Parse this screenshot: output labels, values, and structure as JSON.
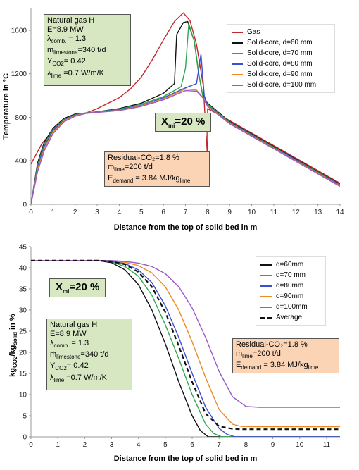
{
  "chart_data": [
    {
      "type": "line",
      "xlabel": "Distance from the top of solid bed in m",
      "ylabel": "Temperature in °C",
      "xlim": [
        0,
        14
      ],
      "ylim": [
        0,
        1800
      ],
      "xticks": [
        "0",
        "1",
        "2",
        "3",
        "4",
        "5",
        "6",
        "7",
        "8",
        "9",
        "10",
        "11",
        "12",
        "13",
        "14"
      ],
      "yticks": [
        "0",
        "400",
        "800",
        "1200",
        "1600"
      ],
      "grid": "none",
      "legend_position": "top-right",
      "series": [
        {
          "name": "Gas",
          "color": "#c0272d",
          "x": [
            0,
            0.5,
            1,
            1.5,
            2,
            2.5,
            3,
            3.5,
            4,
            4.5,
            5,
            5.5,
            6,
            6.5,
            6.9,
            7.2,
            7.5,
            7.8,
            8,
            8,
            9,
            10,
            11,
            12,
            13,
            14
          ],
          "y": [
            370,
            560,
            680,
            760,
            810,
            840,
            880,
            930,
            980,
            1060,
            1170,
            1330,
            1510,
            1680,
            1760,
            1690,
            1470,
            1100,
            420,
            880,
            770,
            655,
            540,
            425,
            310,
            195
          ]
        },
        {
          "name": "Solid-core, d=60 mm",
          "color": "#111111",
          "x": [
            0,
            0.3,
            0.6,
            1,
            1.5,
            2,
            2.5,
            3,
            4,
            5,
            6,
            6.5,
            6.6,
            6.9,
            7.1,
            7.4,
            7.6,
            7.8,
            8,
            9,
            10,
            11,
            12,
            13,
            14
          ],
          "y": [
            0,
            380,
            570,
            700,
            790,
            830,
            840,
            850,
            880,
            930,
            1020,
            1110,
            1560,
            1670,
            1680,
            1500,
            1200,
            980,
            930,
            760,
            645,
            530,
            415,
            300,
            185
          ]
        },
        {
          "name": "Solid-core, d=70 mm",
          "color": "#2ea84f",
          "x": [
            0,
            0.3,
            0.6,
            1,
            1.5,
            2,
            2.5,
            3,
            4,
            5,
            6,
            6.8,
            7,
            7.15,
            7.4,
            7.6,
            7.8,
            8,
            9,
            10,
            11,
            12,
            13,
            14
          ],
          "y": [
            0,
            360,
            550,
            690,
            780,
            825,
            840,
            850,
            875,
            920,
            990,
            1080,
            1250,
            1660,
            1500,
            1200,
            980,
            920,
            755,
            640,
            525,
            410,
            295,
            180
          ]
        },
        {
          "name": "Solid-core, d=80 mm",
          "color": "#3c4fd3",
          "x": [
            0,
            0.3,
            0.6,
            1,
            1.5,
            2,
            2.5,
            3,
            4,
            5,
            6,
            7,
            7.5,
            7.7,
            7.85,
            8,
            9,
            10,
            11,
            12,
            13,
            14
          ],
          "y": [
            0,
            340,
            530,
            680,
            775,
            820,
            840,
            848,
            870,
            910,
            980,
            1070,
            1110,
            1380,
            1000,
            910,
            750,
            635,
            520,
            405,
            290,
            175
          ]
        },
        {
          "name": "Solid-core, d=90 mm",
          "color": "#ed8a26",
          "x": [
            0,
            0.3,
            0.6,
            1,
            1.5,
            2,
            2.5,
            3,
            4,
            5,
            6,
            7,
            7.5,
            7.8,
            8,
            9,
            10,
            11,
            12,
            13,
            14
          ],
          "y": [
            0,
            320,
            510,
            665,
            770,
            815,
            838,
            846,
            865,
            905,
            970,
            1060,
            1050,
            980,
            905,
            745,
            630,
            515,
            400,
            285,
            170
          ]
        },
        {
          "name": "Solid-core, d=100 mm",
          "color": "#9b59c6",
          "x": [
            0,
            0.3,
            0.6,
            1,
            1.5,
            2,
            2.5,
            3,
            4,
            5,
            6,
            7,
            7.5,
            7.8,
            8,
            9,
            10,
            11,
            12,
            13,
            14
          ],
          "y": [
            0,
            300,
            490,
            650,
            760,
            810,
            836,
            845,
            862,
            900,
            960,
            1045,
            1040,
            975,
            900,
            740,
            625,
            510,
            395,
            280,
            165
          ]
        }
      ]
    },
    {
      "type": "line",
      "xlabel": "Distance from the top of solid bed in m",
      "ylabel": "kgCO2/kgsolid in %",
      "xlim": [
        0,
        11.5
      ],
      "ylim": [
        0,
        45
      ],
      "xticks": [
        "0",
        "1",
        "2",
        "3",
        "4",
        "5",
        "6",
        "7",
        "8",
        "9",
        "10",
        "11"
      ],
      "yticks": [
        "0",
        "5",
        "10",
        "15",
        "20",
        "25",
        "30",
        "35",
        "40",
        "45"
      ],
      "grid": "none",
      "legend_position": "top-right",
      "series": [
        {
          "name": "d=60mm",
          "color": "#111111",
          "x": [
            0,
            1,
            2,
            2.5,
            3,
            3.5,
            4,
            4.5,
            5,
            5.5,
            6,
            6.3,
            6.6,
            7,
            8,
            9,
            10,
            11,
            11.5
          ],
          "y": [
            41.7,
            41.7,
            41.7,
            41.7,
            41.2,
            39.5,
            36,
            30,
            22,
            13,
            5,
            1.5,
            0,
            0,
            0,
            0,
            0,
            0,
            0
          ]
        },
        {
          "name": "d=70 mm",
          "color": "#2ea84f",
          "x": [
            0,
            1,
            2,
            2.5,
            3,
            3.5,
            4,
            4.5,
            5,
            5.5,
            6,
            6.5,
            6.8,
            7.1,
            8,
            9,
            10,
            11,
            11.5
          ],
          "y": [
            41.7,
            41.7,
            41.7,
            41.7,
            41.4,
            40.3,
            38,
            33.5,
            26.5,
            18.5,
            10,
            3,
            0.8,
            0,
            0,
            0,
            0,
            0,
            0
          ]
        },
        {
          "name": "d=80mm",
          "color": "#3c4fd3",
          "x": [
            0,
            1,
            2,
            2.5,
            3,
            3.5,
            4,
            4.5,
            5,
            5.5,
            6,
            6.5,
            7,
            7.3,
            7.6,
            8,
            9,
            10,
            11,
            11.5
          ],
          "y": [
            41.7,
            41.7,
            41.7,
            41.7,
            41.5,
            41,
            39.5,
            36.5,
            31,
            23.5,
            15,
            7,
            2,
            0.6,
            0,
            0,
            0,
            0,
            0,
            0
          ]
        },
        {
          "name": "d=90mm",
          "color": "#ed8a26",
          "x": [
            0,
            1,
            2,
            2.5,
            3,
            3.5,
            4,
            4.5,
            5,
            5.5,
            6,
            6.5,
            7,
            7.5,
            7.8,
            8.2,
            9,
            10,
            11,
            11.5
          ],
          "y": [
            41.7,
            41.7,
            41.7,
            41.7,
            41.6,
            41.3,
            40.5,
            38.8,
            35.5,
            30,
            22.5,
            14,
            6.5,
            3,
            2.5,
            2.4,
            2.4,
            2.4,
            2.4,
            2.4
          ]
        },
        {
          "name": "d=100mm",
          "color": "#9b59c6",
          "x": [
            0,
            1,
            2,
            2.5,
            3,
            3.5,
            4,
            4.5,
            5,
            5.5,
            6,
            6.5,
            7,
            7.5,
            8,
            8.5,
            9,
            10,
            11,
            11.5
          ],
          "y": [
            41.7,
            41.7,
            41.7,
            41.7,
            41.7,
            41.5,
            41.1,
            40.3,
            38.6,
            35.5,
            30.5,
            23.5,
            15.5,
            9.5,
            7.2,
            7,
            7,
            7,
            7,
            7
          ]
        },
        {
          "name": "Average",
          "color": "#111111",
          "dashed": true,
          "x": [
            0,
            1,
            2,
            2.5,
            3,
            3.5,
            4,
            4.5,
            5,
            5.5,
            6,
            6.5,
            7,
            7.5,
            7.8,
            8,
            9,
            10,
            11,
            11.5
          ],
          "y": [
            41.7,
            41.7,
            41.7,
            41.7,
            41.5,
            40.8,
            39,
            35.5,
            29.5,
            21.5,
            13,
            5.5,
            2.5,
            1.9,
            1.8,
            1.8,
            1.8,
            1.8,
            1.8,
            1.8
          ]
        }
      ]
    }
  ],
  "panel1": {
    "params": {
      "l1": "Natural gas H",
      "l2": "E=8.9 MW",
      "l3_pre": "λ",
      "l3_sub": "comb.",
      "l3_post": " = 1.3",
      "l4_pre": "ṁ",
      "l4_sub": "limestone",
      "l4_post": "=340 t/d",
      "l5_pre": "Y",
      "l5_sub": "CO2",
      "l5_post": "=  0.42",
      "l6_pre": "λ",
      "l6_sub": "lime",
      "l6_post": " =0.7 W/m/K"
    },
    "xm": {
      "pre": "X",
      "sub": "mi",
      "post": "=20 %"
    },
    "residual": {
      "l1": "Residual-CO₂=1.8  %",
      "l2_pre": "ṁ",
      "l2_sub": "lime",
      "l2_post": "=200 t/d",
      "l3_pre": "E",
      "l3_sub": "demand",
      "l3_mid": " = 3.84 MJ/kg",
      "l3_sub2": "lime"
    }
  },
  "panel2": {
    "params": {
      "l1": "Natural gas H",
      "l2": "E=8.9 MW",
      "l3_pre": "λ",
      "l3_sub": "comb.",
      "l3_post": " = 1.3",
      "l4_pre": "ṁ",
      "l4_sub": "limestone",
      "l4_post": "=340  t/d",
      "l5_pre": "Y",
      "l5_sub": "CO2",
      "l5_post": "=  0.42",
      "l6_pre": "λ",
      "l6_sub": "lime",
      "l6_post": " =0.7 W/m/K"
    },
    "xm": {
      "pre": "X",
      "sub": "mi",
      "post": "=20 %"
    },
    "residual": {
      "l1": "Residual-CO₂=1.8  %",
      "l2_pre": "ṁ",
      "l2_sub": "lime",
      "l2_post": "=200 t/d",
      "l3_pre": "E",
      "l3_sub": "demand",
      "l3_mid": " = 3.84 MJ/kg",
      "l3_sub2": "lime"
    },
    "ylabel": {
      "pre": "kg",
      "sub1": "CO2",
      "mid": "/kg",
      "sub2": "solid",
      "post": " in %"
    }
  }
}
